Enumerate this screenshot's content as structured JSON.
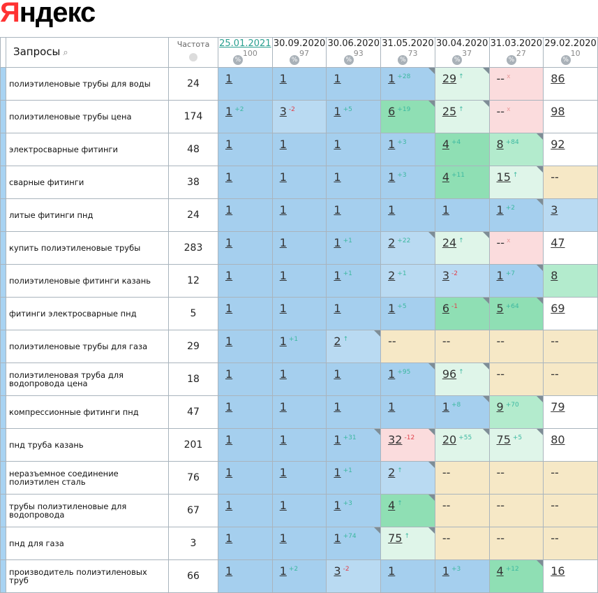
{
  "logo": "Яндекс",
  "header": {
    "query_label": "Запросы",
    "freq_label": "Частота",
    "dates": [
      {
        "date": "25.01.2021",
        "pct": "100"
      },
      {
        "date": "30.09.2020",
        "pct": "97"
      },
      {
        "date": "30.06.2020",
        "pct": "93"
      },
      {
        "date": "31.05.2020",
        "pct": "73"
      },
      {
        "date": "30.04.2020",
        "pct": "37"
      },
      {
        "date": "31.03.2020",
        "pct": "27"
      },
      {
        "date": "29.02.2020",
        "pct": "10"
      }
    ]
  },
  "colors": {
    "B": "#a5cfee",
    "L": "#b9daf2",
    "G": "#8fdfb4",
    "g": "#b3ebcd",
    "p": "#dff5e9",
    "R": "#fbdcdd",
    "Y": "#f6e8c6",
    "W": "#ffffff"
  },
  "rows": [
    {
      "q": "полиэтиленовые трубы для воды",
      "f": "24",
      "c": [
        "1||B|",
        "1||B|",
        "1||B|",
        "1|+28|B|1",
        "29|↑|p|1",
        "--|x|R|",
        "86||W|"
      ]
    },
    {
      "q": "полиэтиленовые трубы цена",
      "f": "174",
      "c": [
        "1|+2|B|",
        "3|-2|L|",
        "1|+5|B|",
        "6|+19|G|1",
        "25|↑|p|1",
        "--|x|R|",
        "98||W|"
      ]
    },
    {
      "q": "электросварные фитинги",
      "f": "48",
      "c": [
        "1||B|",
        "1||B|",
        "1||B|",
        "1|+3|B|",
        "4|+4|G|",
        "8|+84|g|1",
        "92||W|"
      ]
    },
    {
      "q": "сварные фитинги",
      "f": "38",
      "c": [
        "1||B|",
        "1||B|",
        "1||B|",
        "1|+3|B|",
        "4|+11|G|",
        "15|↑|p|1",
        "--||Y|"
      ]
    },
    {
      "q": "литые фитинги пнд",
      "f": "24",
      "c": [
        "1||B|",
        "1||B|",
        "1||B|",
        "1||B|",
        "1||B|",
        "1|+2|B|1",
        "3||L|"
      ]
    },
    {
      "q": "купить полиэтиленовые трубы",
      "f": "283",
      "c": [
        "1||B|",
        "1||B|",
        "1|+1|B|",
        "2|+22|L|1",
        "24|↑|p|1",
        "--|x|R|",
        "47||W|"
      ]
    },
    {
      "q": "полиэтиленовые фитинги казань",
      "f": "12",
      "c": [
        "1||B|",
        "1||B|",
        "1|+1|B|",
        "2|+1|L|",
        "3|-2|L|",
        "1|+7|B|1",
        "8||g|"
      ]
    },
    {
      "q": "фитинги электросварные пнд",
      "f": "5",
      "c": [
        "1||B|",
        "1||B|",
        "1||B|",
        "1|+5|B|",
        "6|-1|G|1",
        "5|+64|G|1",
        "69||W|"
      ]
    },
    {
      "q": "полиэтиленовые трубы для газа",
      "f": "29",
      "c": [
        "1||B|",
        "1|+1|B|",
        "2|↑|L|1",
        "--||Y|",
        "--||Y|",
        "--||Y|",
        "--||Y|"
      ]
    },
    {
      "q": "полиэтиленовая труба для водопровода цена",
      "f": "18",
      "c": [
        "1||B|",
        "1||B|",
        "1||B|",
        "1|+95|B|1",
        "96|↑|p|1",
        "--||Y|",
        "--||Y|"
      ]
    },
    {
      "q": "компрессионные фитинги пнд",
      "f": "47",
      "c": [
        "1||B|",
        "1||B|",
        "1||B|",
        "1||B|",
        "1|+8|B|1",
        "9|+70|g|1",
        "79||W|"
      ]
    },
    {
      "q": "пнд труба казань",
      "f": "201",
      "c": [
        "1||B|",
        "1||B|",
        "1|+31|B|1",
        "32|-12|R|1",
        "20|+55|p|1",
        "75|+5|p|1",
        "80||W|"
      ]
    },
    {
      "q": "неразъемное соединение полиэтилен сталь",
      "f": "76",
      "c": [
        "1||B|",
        "1||B|",
        "1|+1|B|",
        "2|↑|L|1",
        "--||Y|",
        "--||Y|",
        "--||Y|"
      ]
    },
    {
      "q": "трубы полиэтиленовые для водопровода",
      "f": "67",
      "c": [
        "1||B|",
        "1||B|",
        "1|+3|B|",
        "4|↑|G|1",
        "--||Y|",
        "--||Y|",
        "--||Y|"
      ]
    },
    {
      "q": "пнд для газа",
      "f": "3",
      "c": [
        "1||B|",
        "1||B|",
        "1|+74|B|1",
        "75|↑|p|1",
        "--||Y|",
        "--||Y|",
        "--||Y|"
      ]
    },
    {
      "q": "производитель полиэтиленовых труб",
      "f": "66",
      "c": [
        "1||B|",
        "1|+2|B|",
        "3|-2|L|",
        "1||B|",
        "1|+3|B|",
        "4|+12|G|1",
        "16||W|"
      ]
    }
  ]
}
